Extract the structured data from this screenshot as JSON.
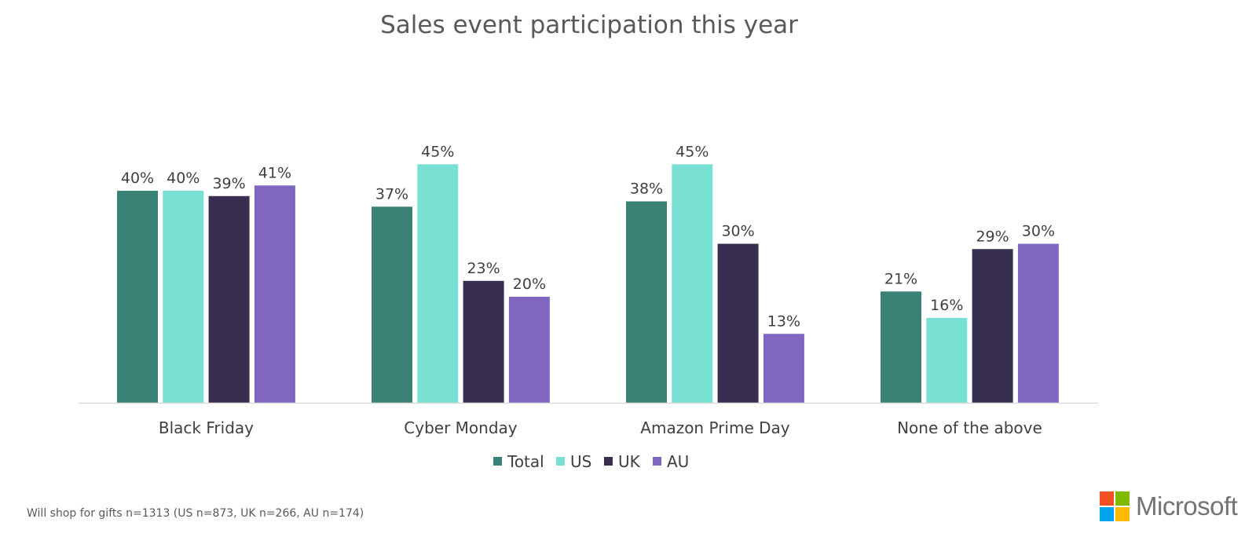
{
  "chart_data": {
    "type": "bar",
    "title": "Sales event participation this year",
    "categories": [
      "Black Friday",
      "Cyber Monday",
      "Amazon Prime Day",
      "None of the above"
    ],
    "series": [
      {
        "name": "Total",
        "color": "#3b8276",
        "values": [
          40,
          37,
          38,
          21
        ]
      },
      {
        "name": "US",
        "color": "#78e1d3",
        "values": [
          40,
          45,
          45,
          16
        ]
      },
      {
        "name": "UK",
        "color": "#382e52",
        "values": [
          39,
          23,
          30,
          29
        ]
      },
      {
        "name": "AU",
        "color": "#8066c1",
        "values": [
          41,
          20,
          13,
          30
        ]
      }
    ],
    "value_suffix": "%",
    "ylim": [
      0,
      50
    ],
    "xlabel": "",
    "ylabel": "",
    "legend_position": "bottom-center"
  },
  "footnote": "Will shop for gifts n=1313 (US n=873, UK n=266, AU n=174)",
  "brand": {
    "name": "Microsoft",
    "logo_colors": [
      "#f25022",
      "#7fba00",
      "#00a4ef",
      "#ffb900"
    ]
  }
}
